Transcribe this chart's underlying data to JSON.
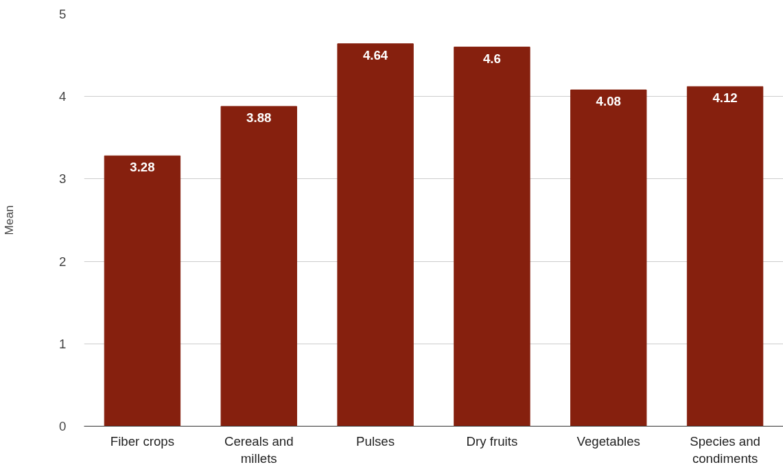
{
  "chart_data": {
    "type": "bar",
    "ylabel": "Mean",
    "categories": [
      "Fiber crops",
      "Cereals and millets",
      "Pulses",
      "Dry fruits",
      "Vegetables",
      "Species and condiments"
    ],
    "values": [
      3.28,
      3.88,
      4.64,
      4.6,
      4.08,
      4.12
    ],
    "color": "#86200e",
    "ylim": [
      0,
      5
    ],
    "yticks": [
      0,
      1,
      2,
      3,
      4,
      5
    ],
    "grid": "y",
    "data_labels": true
  }
}
